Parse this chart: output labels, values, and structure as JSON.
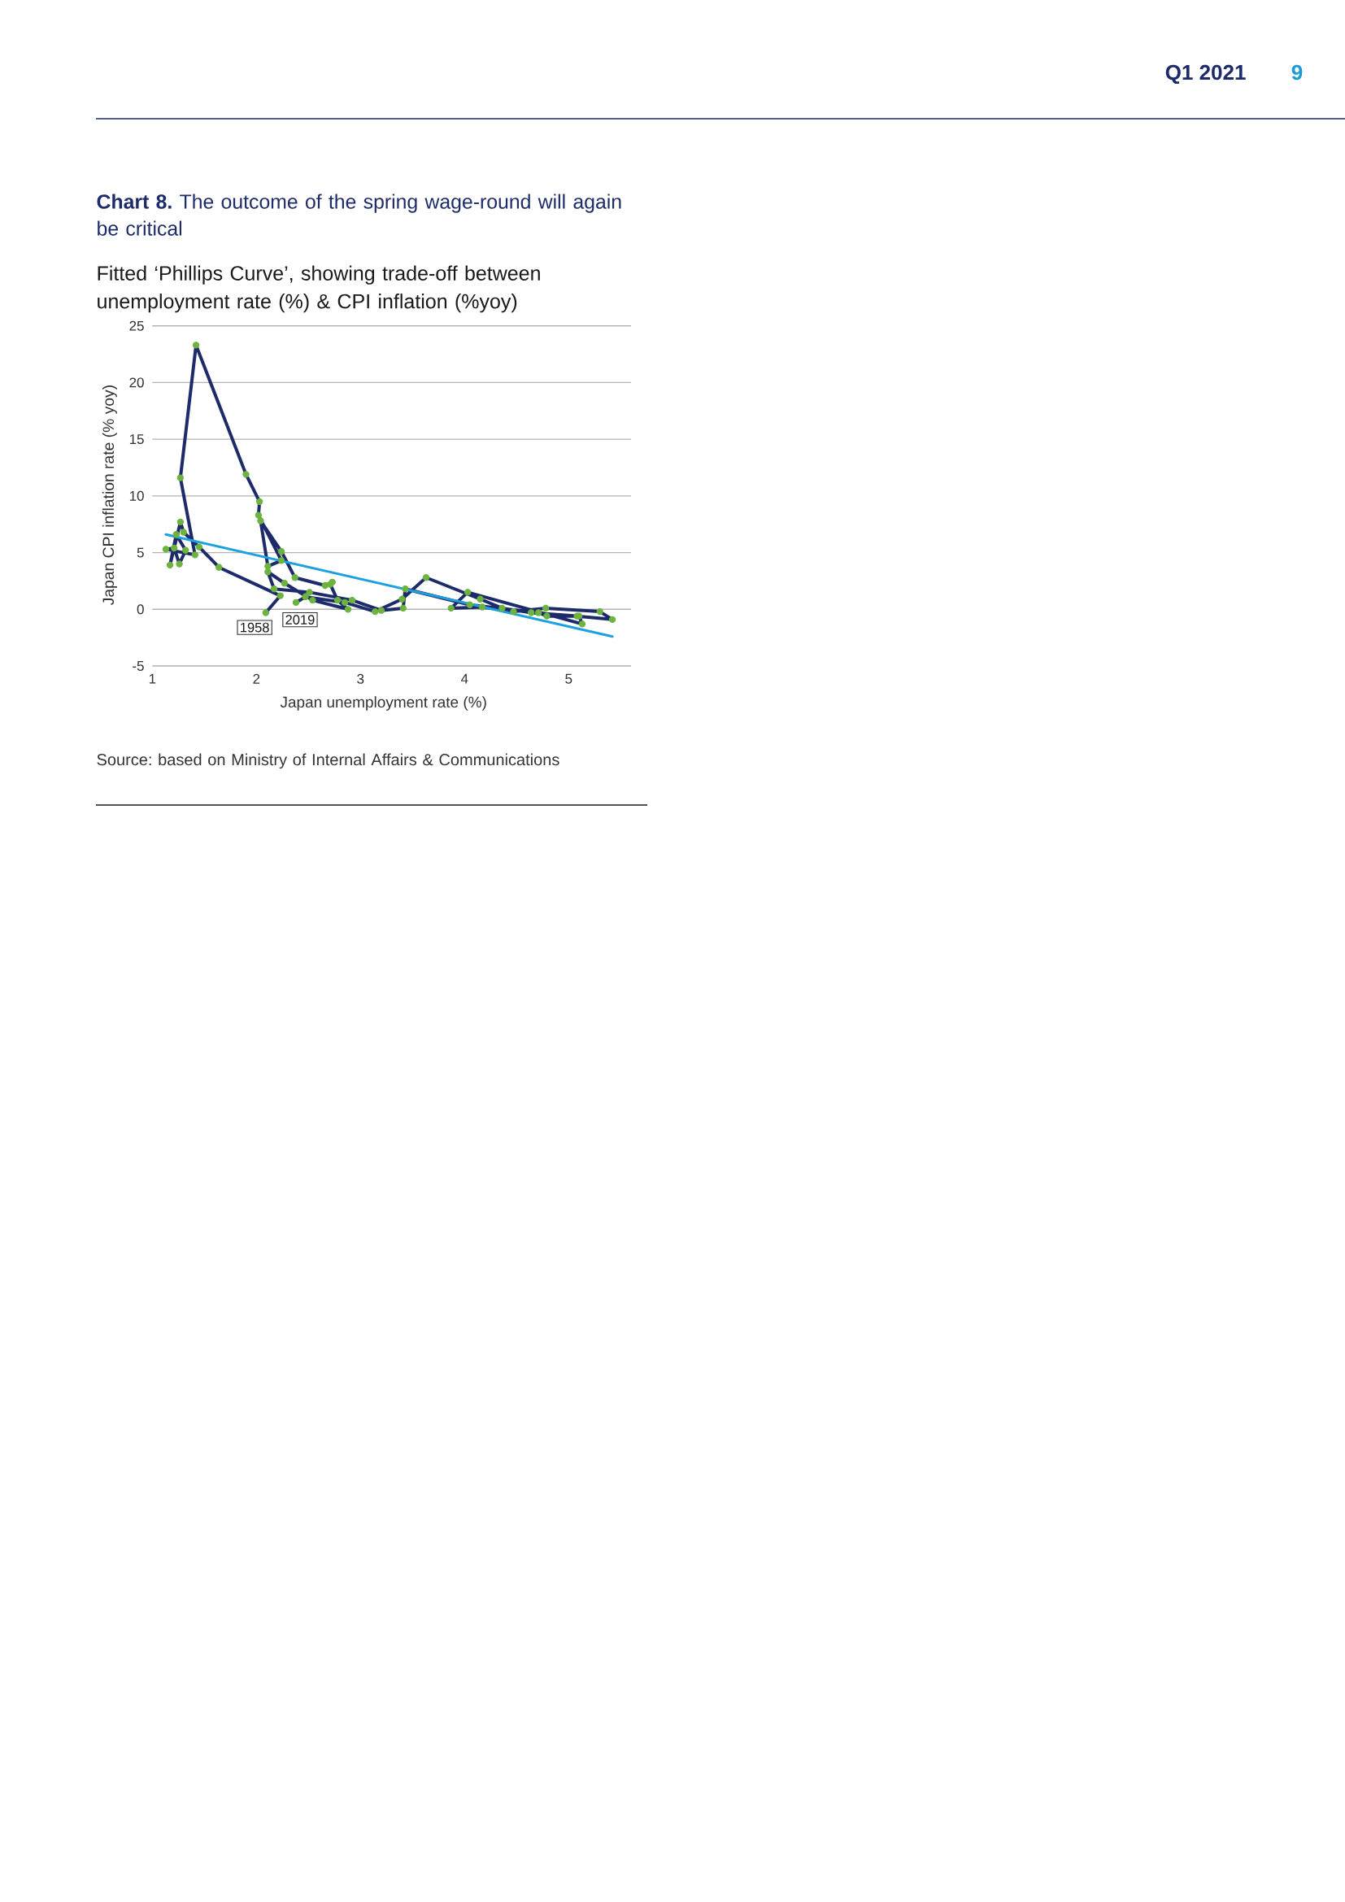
{
  "chart_data": {
    "type": "line",
    "title": "**Chart 8.** The outcome of the spring wage-round will again be critical",
    "subtitle": "Fitted ‘Phillips Curve’, showing trade-off between unemployment rate (%) & CPI inflation (%yoy)",
    "xlabel": "Japan unemployment rate (%)",
    "ylabel": "Japan CPI inflation rate (% yoy)",
    "annotations": [
      {
        "text": "1958",
        "x": 2.09,
        "y": -0.3
      },
      {
        "text": "2019",
        "x": 2.38,
        "y": 0.6
      },
      "Source: based on Ministry of Internal Affairs & Communications",
      "Q1 2021",
      "9"
    ],
    "xlim": [
      1,
      5.6
    ],
    "ylim": [
      -5,
      25
    ],
    "xticks": [
      1,
      2,
      3,
      4,
      5
    ],
    "yticks": [
      -5,
      0,
      5,
      10,
      15,
      20,
      25
    ],
    "grid": "y",
    "series": [
      {
        "color": "#1d2b6b",
        "marker": "circle",
        "colors": [
          "#6cb33f",
          "#6cb33f",
          "#6cb33f",
          "#6cb33f",
          "#6cb33f",
          "#6cb33f",
          "#6cb33f",
          "#6cb33f",
          "#6cb33f",
          "#6cb33f",
          "#6cb33f",
          "#6cb33f",
          "#6cb33f",
          "#6cb33f",
          "#6cb33f",
          "#6cb33f",
          "#6cb33f",
          "#6cb33f",
          "#6cb33f",
          "#6cb33f",
          "#6cb33f",
          "#6cb33f",
          "#6cb33f",
          "#6cb33f",
          "#6cb33f",
          "#6cb33f",
          "#6cb33f",
          "#6cb33f",
          "#6cb33f",
          "#6cb33f",
          "#6cb33f",
          "#6cb33f",
          "#6cb33f",
          "#6cb33f",
          "#6cb33f",
          "#6cb33f",
          "#6cb33f",
          "#6cb33f",
          "#6cb33f",
          "#6cb33f",
          "#6cb33f",
          "#6cb33f",
          "#6cb33f",
          "#6cb33f",
          "#6cb33f",
          "#6cb33f",
          "#6cb33f",
          "#6cb33f",
          "#6cb33f",
          "#6cb33f",
          "#6cb33f",
          "#6cb33f",
          "#6cb33f",
          "#6cb33f",
          "#6cb33f",
          "#6cb33f",
          "#6cb33f",
          "#6cb33f",
          "#6cb33f"
        ],
        "x": [
          2.09,
          2.23,
          1.64,
          1.45,
          1.3,
          1.27,
          1.17,
          1.23,
          1.32,
          1.26,
          1.21,
          1.13,
          1.41,
          1.27,
          1.42,
          1.9,
          2.03,
          2.02,
          2.24,
          2.11,
          2.04,
          2.24,
          2.37,
          2.66,
          2.73,
          2.71,
          2.78,
          2.88,
          2.54,
          2.27,
          2.11,
          2.17,
          2.51,
          2.92,
          3.2,
          3.41,
          3.43,
          4.05,
          4.71,
          4.79,
          5.08,
          5.42,
          5.3,
          4.78,
          4.47,
          4.17,
          3.87,
          4.03,
          5.13,
          5.1,
          4.64,
          4.36,
          4.15,
          3.63,
          3.4,
          3.14,
          2.85,
          2.47,
          2.38
        ],
        "values": [
          -0.3,
          1.2,
          3.7,
          5.5,
          6.8,
          7.7,
          3.9,
          6.6,
          5.2,
          4.0,
          5.4,
          5.3,
          4.8,
          11.6,
          23.3,
          11.9,
          9.5,
          8.3,
          4.3,
          3.8,
          7.8,
          5.1,
          2.8,
          2.1,
          2.4,
          2.2,
          0.8,
          0.0,
          0.8,
          2.3,
          3.3,
          1.8,
          1.5,
          0.8,
          -0.1,
          0.1,
          1.8,
          0.4,
          -0.3,
          -0.6,
          -0.6,
          -0.9,
          -0.2,
          0.1,
          -0.2,
          0.2,
          0.1,
          1.5,
          -1.3,
          -0.6,
          -0.3,
          0.1,
          0.9,
          2.8,
          0.9,
          -0.2,
          0.6,
          1.1,
          0.6
        ]
      },
      {
        "color": "#1ba1e2",
        "x": [
          1.13,
          5.42
        ],
        "values": [
          6.6,
          -2.4
        ]
      }
    ]
  }
}
